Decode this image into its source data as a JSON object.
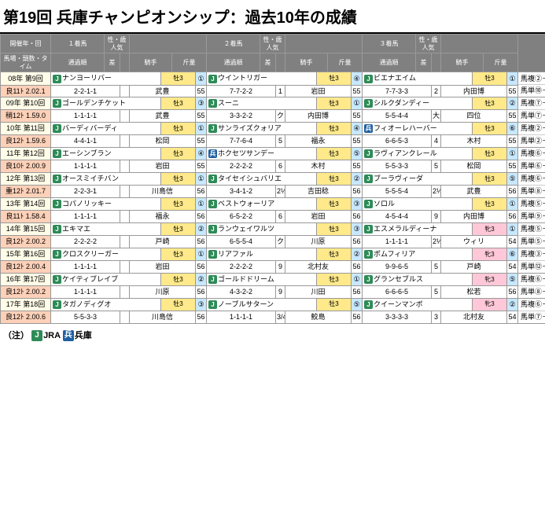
{
  "title": "第19回 兵庫チャンピオンシップ：過去10年の成績",
  "headers": {
    "race": [
      "開催年・回",
      "馬場・頭数・タイム"
    ],
    "p1": "１着馬",
    "p2": "２着馬",
    "p3": "３着馬",
    "sub": [
      "通過順",
      "差",
      "騎手",
      "斤量"
    ],
    "sai": "性・歳",
    "pop": "人気",
    "pay": "配　当　金"
  },
  "rows": [
    {
      "r1": "08年 第9回",
      "r2": "良11ﾄ 2.02.1",
      "h": [
        [
          "J",
          "ナンヨーリバー",
          "牡3",
          "①",
          "2-2-1-1",
          "",
          "武豊",
          "55"
        ],
        [
          "J",
          "ウイントリガー",
          "牡3",
          "④",
          "7-7-2-2",
          "1",
          "岩田",
          "55"
        ],
        [
          "J",
          "ビエナエイム",
          "牡3",
          "①",
          "7-7-3-3",
          "2",
          "内田博",
          "55"
        ]
      ],
      "pay": [
        [
          "馬複②－⑩",
          "970円",
          "3複②⑨⑩",
          "550円"
        ],
        [
          "馬単⑩－②",
          "1290円",
          "3単⑩②⑨",
          "2900円"
        ]
      ]
    },
    {
      "r1": "09年 第10回",
      "r2": "稍12ﾄ 1.59.0",
      "h": [
        [
          "J",
          "ゴールデンチケット",
          "牡3",
          "③",
          "1-1-1-1",
          "",
          "武豊",
          "55"
        ],
        [
          "J",
          "スーニ",
          "牡3",
          "①",
          "3-3-2-2",
          "クビ",
          "内田博",
          "55"
        ],
        [
          "J",
          "シルクダンディー",
          "牡3",
          "②",
          "5-5-4-4",
          "大差",
          "四位",
          "55"
        ]
      ],
      "pay": [
        [
          "馬複⑦－⑫",
          "270円",
          "3複①⑦⑫",
          "220円"
        ],
        [
          "馬単⑦－⑫",
          "1000円",
          "3単⑦⑫①",
          "2430円"
        ]
      ]
    },
    {
      "r1": "10年 第11回",
      "r2": "良12ﾄ 1.59.6",
      "h": [
        [
          "J",
          "バーディバーディ",
          "牡3",
          "①",
          "4-4-1-1",
          "",
          "松岡",
          "55"
        ],
        [
          "J",
          "サンライズクォリア",
          "牡3",
          "④",
          "7-7-6-4",
          "5",
          "福永",
          "55"
        ],
        [
          "H",
          "フィオーレハーバー",
          "牡3",
          "⑥",
          "6-6-5-3",
          "4",
          "木村",
          "55"
        ]
      ],
      "pay": [
        [
          "馬複②－⑪",
          "400円",
          "3複②③⑪",
          "2420円"
        ],
        [
          "馬単②－⑪",
          "530円",
          "3単②⑪③",
          "4900円"
        ]
      ]
    },
    {
      "r1": "11年 第12回",
      "r2": "良10ﾄ 2.00.9",
      "h": [
        [
          "J",
          "エーシンブラン",
          "牡3",
          "④",
          "1-1-1-1",
          "",
          "岩田",
          "55"
        ],
        [
          "H",
          "ホクセツサンデー",
          "牡3",
          "⑤",
          "2-2-2-2",
          "6",
          "木村",
          "55"
        ],
        [
          "J",
          "ラヴィアンクレール",
          "牡3",
          "①",
          "5-5-3-3",
          "5",
          "松岡",
          "55"
        ]
      ],
      "pay": [
        [
          "馬複⑥－⑧",
          "8990円",
          "3複③⑥⑧",
          "2770円"
        ],
        [
          "馬単⑥－⑧",
          "16950円",
          "3単⑥⑧③",
          "64160円"
        ]
      ]
    },
    {
      "r1": "12年 第13回",
      "r2": "重12ﾄ 2.01.7",
      "h": [
        [
          "J",
          "オースミイチバン",
          "牡3",
          "①",
          "2-2-3-1",
          "",
          "川島信",
          "56"
        ],
        [
          "J",
          "タイセイシュバリエ",
          "牡3",
          "②",
          "3-4-1-2",
          "2½",
          "吉田稔",
          "56"
        ],
        [
          "J",
          "ブーラヴィーダ",
          "牡3",
          "⑤",
          "5-5-5-4",
          "2½",
          "武豊",
          "56"
        ]
      ],
      "pay": [
        [
          "馬複⑥－⑧",
          "250円",
          "3複④⑥⑧",
          "500円"
        ],
        [
          "馬単⑧－⑥",
          "420円",
          "3単⑧⑥④",
          "1290円"
        ]
      ]
    },
    {
      "r1": "13年 第14回",
      "r2": "良11ﾄ 1.58.4",
      "h": [
        [
          "J",
          "コパノリッキー",
          "牡3",
          "①",
          "1-1-1-1",
          "",
          "福永",
          "56"
        ],
        [
          "J",
          "ベストウォーリア",
          "牡3",
          "③",
          "6-5-2-2",
          "6",
          "岩田",
          "56"
        ],
        [
          "J",
          "ソロル",
          "牡3",
          "①",
          "4-5-4-4",
          "9",
          "内田博",
          "56"
        ]
      ],
      "pay": [
        [
          "馬複⑤－⑨",
          "400円",
          "3複⑤⑧⑨",
          "300円"
        ],
        [
          "馬単⑨－⑤",
          "560円",
          "3単⑨⑤⑧",
          "1130円"
        ]
      ]
    },
    {
      "r1": "14年 第15回",
      "r2": "良12ﾄ 2.00.2",
      "h": [
        [
          "J",
          "エキマエ",
          "牡3",
          "②",
          "2-2-2-2",
          "",
          "戸崎",
          "56"
        ],
        [
          "J",
          "ランウェイワルツ",
          "牡3",
          "③",
          "6-5-5-4",
          "クビ",
          "川原",
          "56"
        ],
        [
          "J",
          "エスメラルディーナ",
          "牝3",
          "①",
          "1-1-1-1",
          "2½",
          "ウィリ",
          "54"
        ]
      ],
      "pay": [
        [
          "馬複⑤－⑥",
          "470円",
          "3複⑤⑥⑪",
          "200円"
        ],
        [
          "馬単⑤－⑥",
          "900円",
          "3単⑤⑥⑪",
          "1400円"
        ]
      ]
    },
    {
      "r1": "15年 第16回",
      "r2": "良12ﾄ 2.00.4",
      "h": [
        [
          "J",
          "クロスクリーガー",
          "牡3",
          "①",
          "1-1-1-1",
          "",
          "岩田",
          "56"
        ],
        [
          "J",
          "リアファル",
          "牡3",
          "②",
          "2-2-2-2",
          "9",
          "北村友",
          "56"
        ],
        [
          "J",
          "ポムフィリア",
          "牝3",
          "⑥",
          "9-9-6-5",
          "5",
          "戸崎",
          "54"
        ]
      ],
      "pay": [
        [
          "馬複③－⑫",
          "180円",
          "3複①③⑫",
          "890円"
        ],
        [
          "馬単⑫－③",
          "270円",
          "3単⑫③①",
          "1930円"
        ]
      ]
    },
    {
      "r1": "16年 第17回",
      "r2": "良12ﾄ 2.00.2",
      "h": [
        [
          "J",
          "ケイティブレイブ",
          "牡3",
          "②",
          "1-1-1-1",
          "",
          "川原",
          "56"
        ],
        [
          "J",
          "ゴールドドリーム",
          "牡3",
          "①",
          "4-3-2-2",
          "9",
          "川田",
          "56"
        ],
        [
          "J",
          "グランセブルス",
          "牝3",
          "⑤",
          "6-6-6-5",
          "5",
          "松若",
          "56"
        ]
      ],
      "pay": [
        [
          "馬複⑥－⑧",
          "200円",
          "3複④⑥⑧",
          "930円"
        ],
        [
          "馬単⑧－⑥",
          "780円",
          "3単⑧⑥④",
          "4100円"
        ]
      ]
    },
    {
      "r1": "17年 第18回",
      "r2": "良12ﾄ 2.00.6",
      "h": [
        [
          "J",
          "タガノディグオ",
          "牡3",
          "③",
          "5-5-3-3",
          "",
          "川島信",
          "56"
        ],
        [
          "J",
          "ノーブルサターン",
          "牡3",
          "⑤",
          "1-1-1-1",
          "3/4",
          "鮫島",
          "56"
        ],
        [
          "J",
          "クイーンマンボ",
          "牝3",
          "②",
          "3-3-3-3",
          "3",
          "北村友",
          "54"
        ]
      ],
      "pay": [
        [
          "馬複⑥－⑦",
          "4280円",
          "3複①⑥⑦",
          "3110円"
        ],
        [
          "馬単⑦－⑥",
          "7930円",
          "3単⑦⑥①",
          "28970円"
        ]
      ]
    }
  ],
  "legend": {
    "note": "（注）",
    "j": "JRA",
    "h": "兵庫"
  }
}
